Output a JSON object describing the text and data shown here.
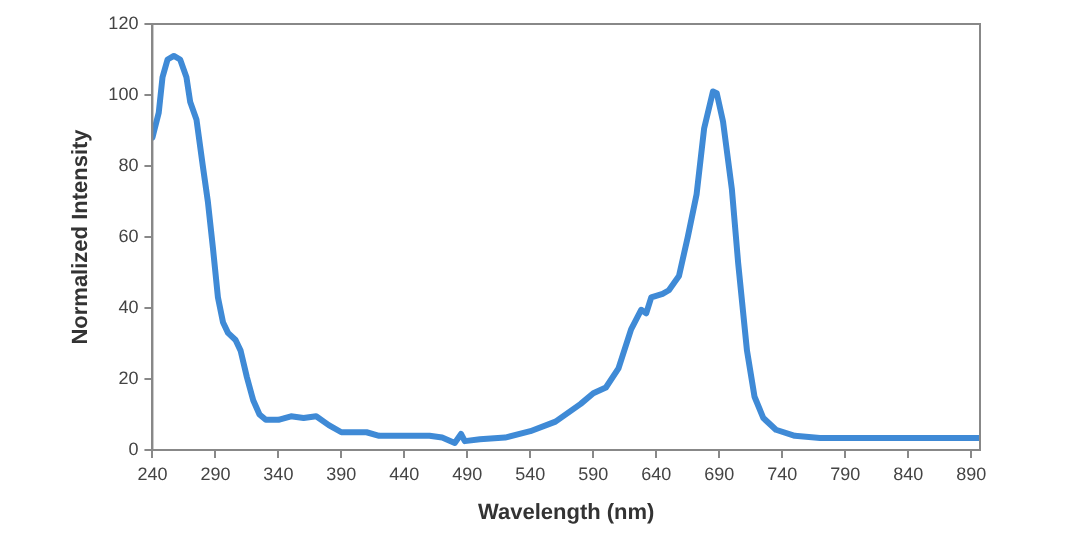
{
  "chart_data": {
    "type": "line",
    "xlabel": "Wavelength (nm)",
    "ylabel": "Normalized Intensity",
    "x": [
      240,
      245,
      248,
      252,
      257,
      262,
      267,
      270,
      275,
      280,
      284,
      288,
      292,
      296,
      300,
      306,
      310,
      315,
      320,
      325,
      330,
      340,
      350,
      360,
      370,
      380,
      390,
      400,
      410,
      420,
      440,
      460,
      470,
      480,
      485,
      488,
      500,
      520,
      540,
      560,
      580,
      590,
      600,
      610,
      620,
      628,
      632,
      636,
      645,
      650,
      658,
      665,
      672,
      678,
      685,
      688,
      693,
      700,
      705,
      712,
      718,
      725,
      735,
      750,
      770,
      897
    ],
    "series": [
      {
        "color": "#3f8ad6",
        "values": [
          88,
          95,
          105,
          110,
          111,
          110,
          105,
          98,
          93,
          80,
          70,
          57,
          43,
          36,
          33,
          31,
          28,
          20.5,
          14,
          10,
          8.5,
          8.5,
          9.5,
          9,
          9.5,
          7,
          5,
          5,
          5,
          4,
          4,
          4,
          3.5,
          2,
          4.5,
          2.5,
          3,
          3.5,
          5.3,
          8,
          13,
          16,
          17.6,
          23,
          34,
          39.5,
          38.5,
          43,
          44,
          45,
          49,
          60,
          72,
          90.6,
          101,
          100.5,
          92.5,
          73.5,
          52.7,
          28,
          15,
          9,
          5.7,
          4,
          3.4,
          3.4
        ]
      }
    ],
    "xlim": [
      240,
      897
    ],
    "xticks": [
      240,
      290,
      340,
      390,
      440,
      490,
      540,
      590,
      640,
      690,
      740,
      790,
      840,
      890
    ],
    "ylim": [
      0,
      120
    ],
    "yticks": [
      0,
      20,
      40,
      60,
      80,
      100,
      120
    ],
    "grid": false,
    "legend": false,
    "marker": "none",
    "line_style": "solid"
  }
}
